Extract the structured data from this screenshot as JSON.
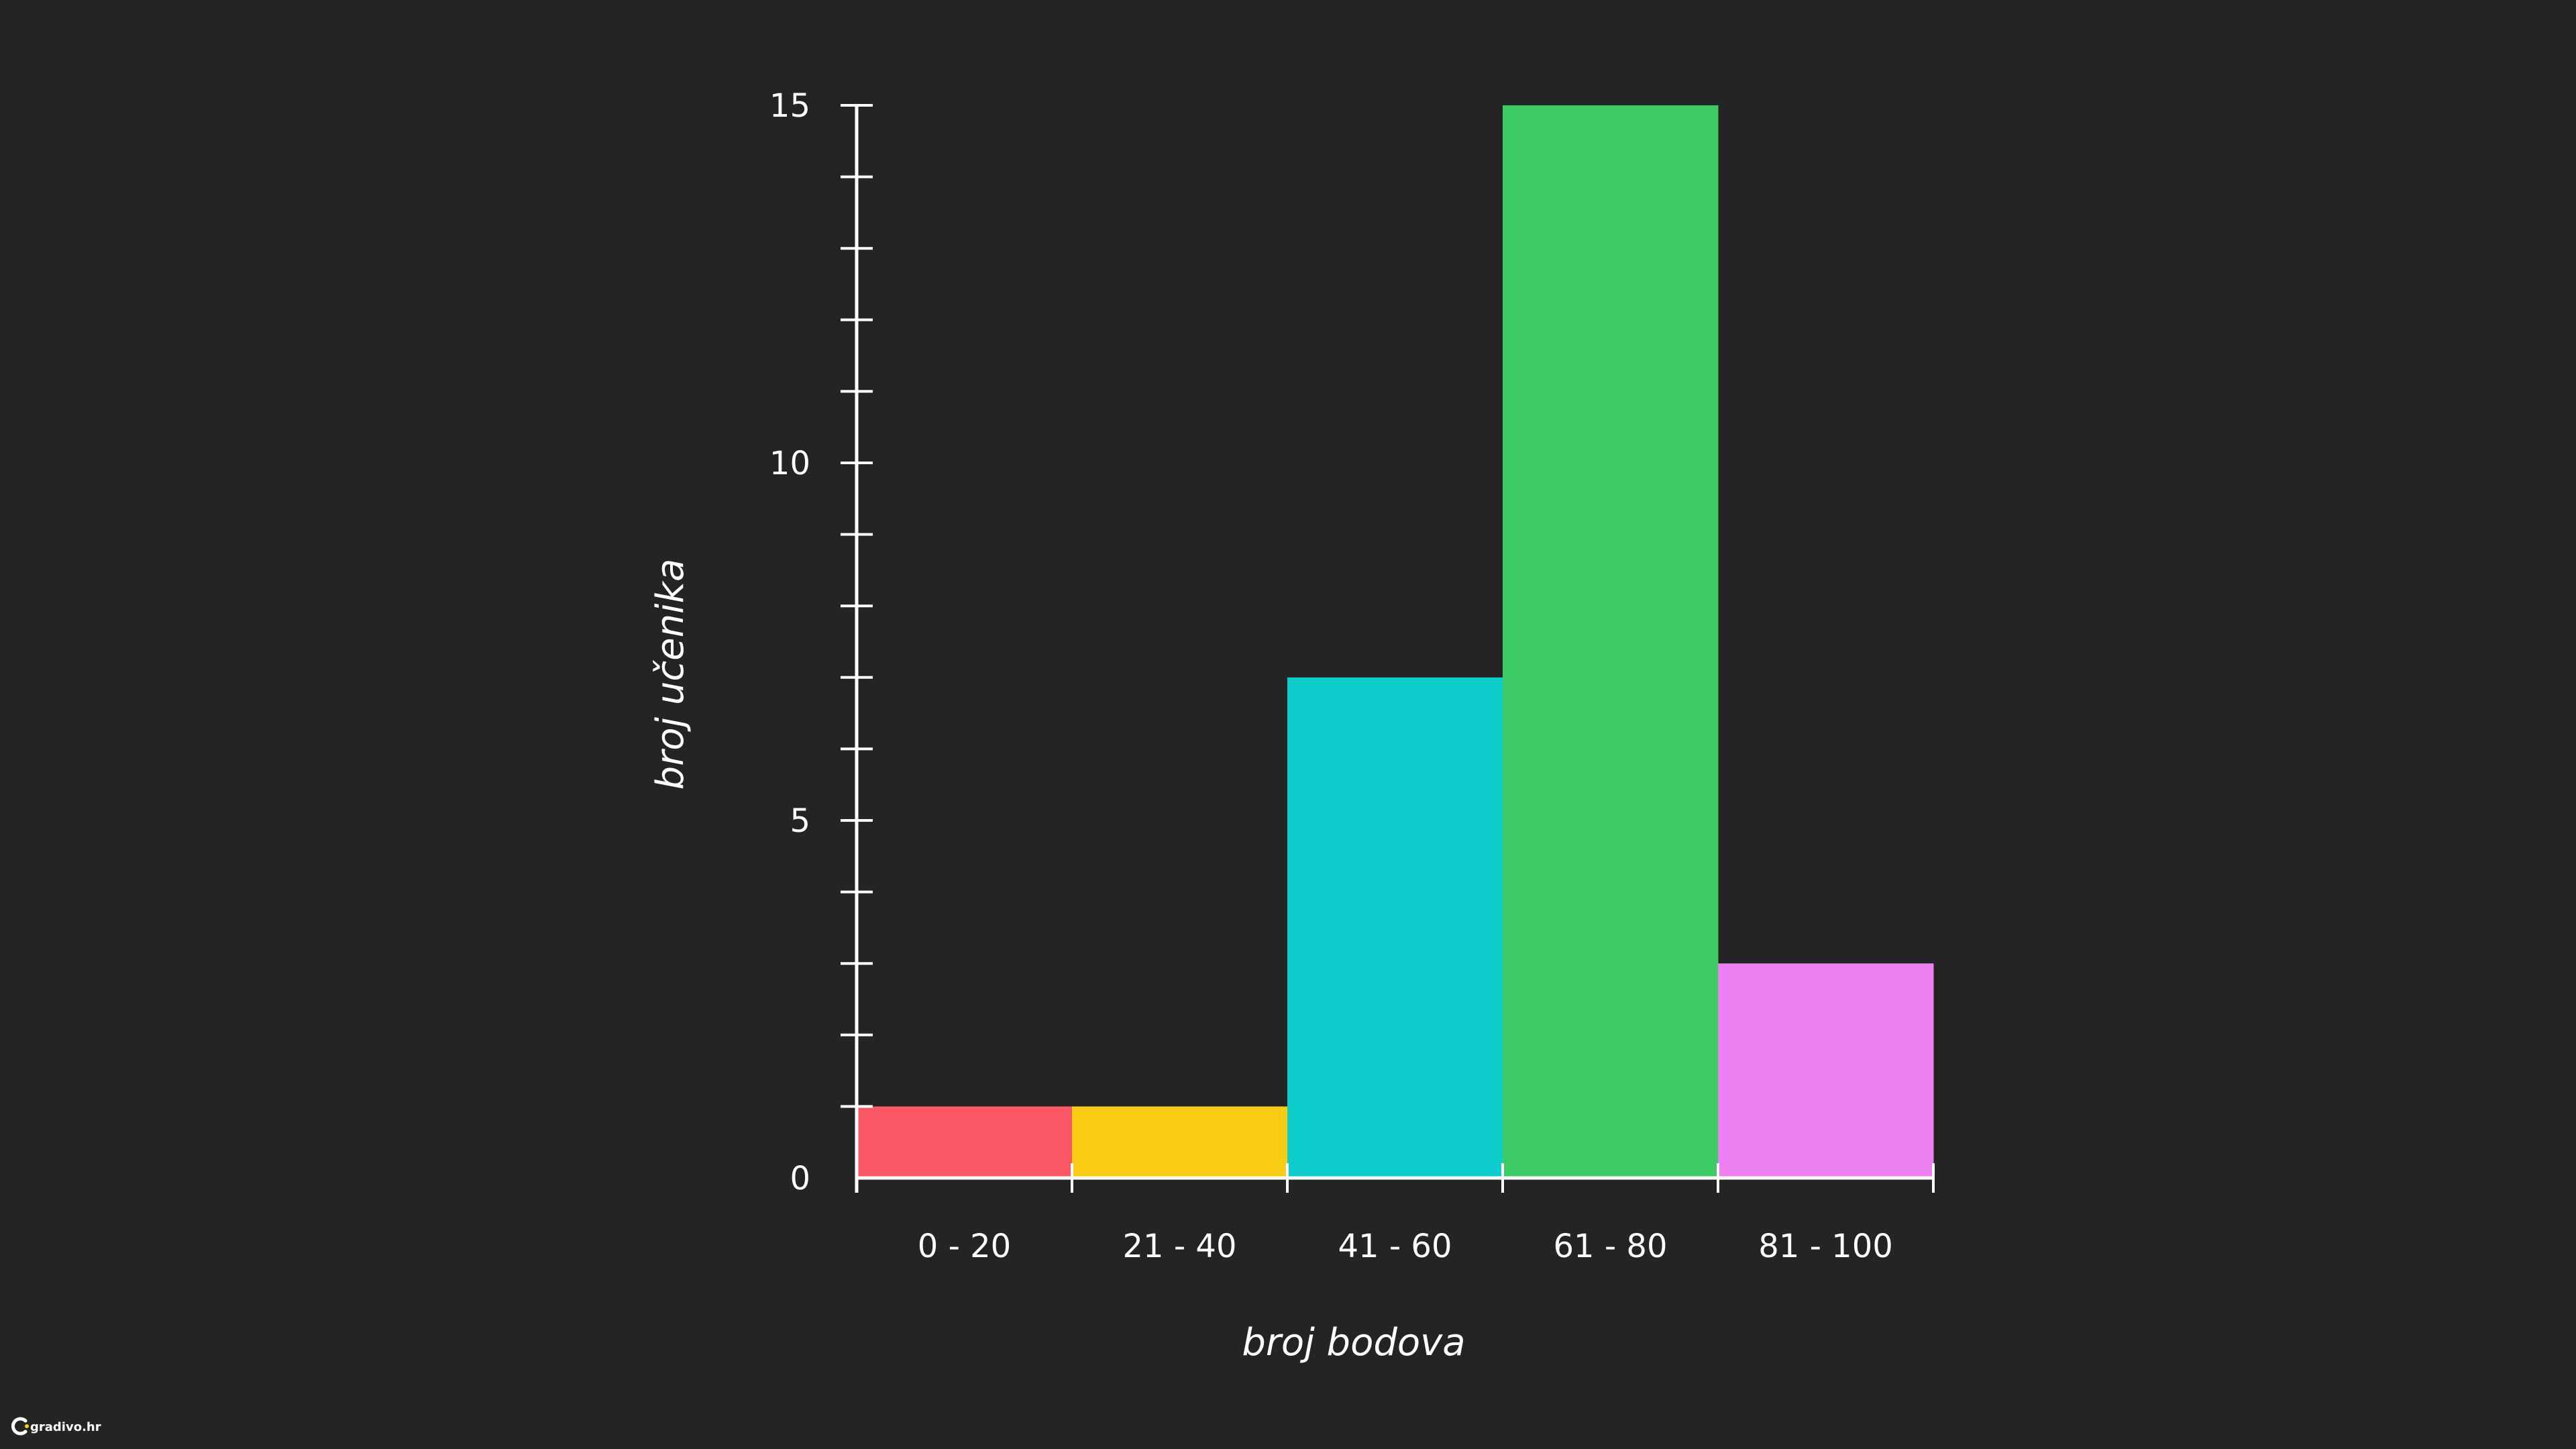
{
  "chart_data": {
    "type": "bar",
    "categories": [
      "0 - 20",
      "21 - 40",
      "41 - 60",
      "61 - 80",
      "81 - 100"
    ],
    "values": [
      1,
      1,
      7,
      15,
      3
    ],
    "colors": [
      "#fc5765",
      "#f9cd16",
      "#0ecbcc",
      "#3ccb64",
      "#ee80f1"
    ],
    "xlabel": "broj bodova",
    "ylabel": "broj učenika",
    "ylim": [
      0,
      15
    ],
    "major_ticks": [
      0,
      5,
      10,
      15
    ],
    "minor_tick_step": 1,
    "grid": false,
    "background": "#242424",
    "axis_color": "#ffffff"
  },
  "watermark": {
    "text": "gradivo.hr",
    "icon": "gradivo-logo-icon"
  }
}
